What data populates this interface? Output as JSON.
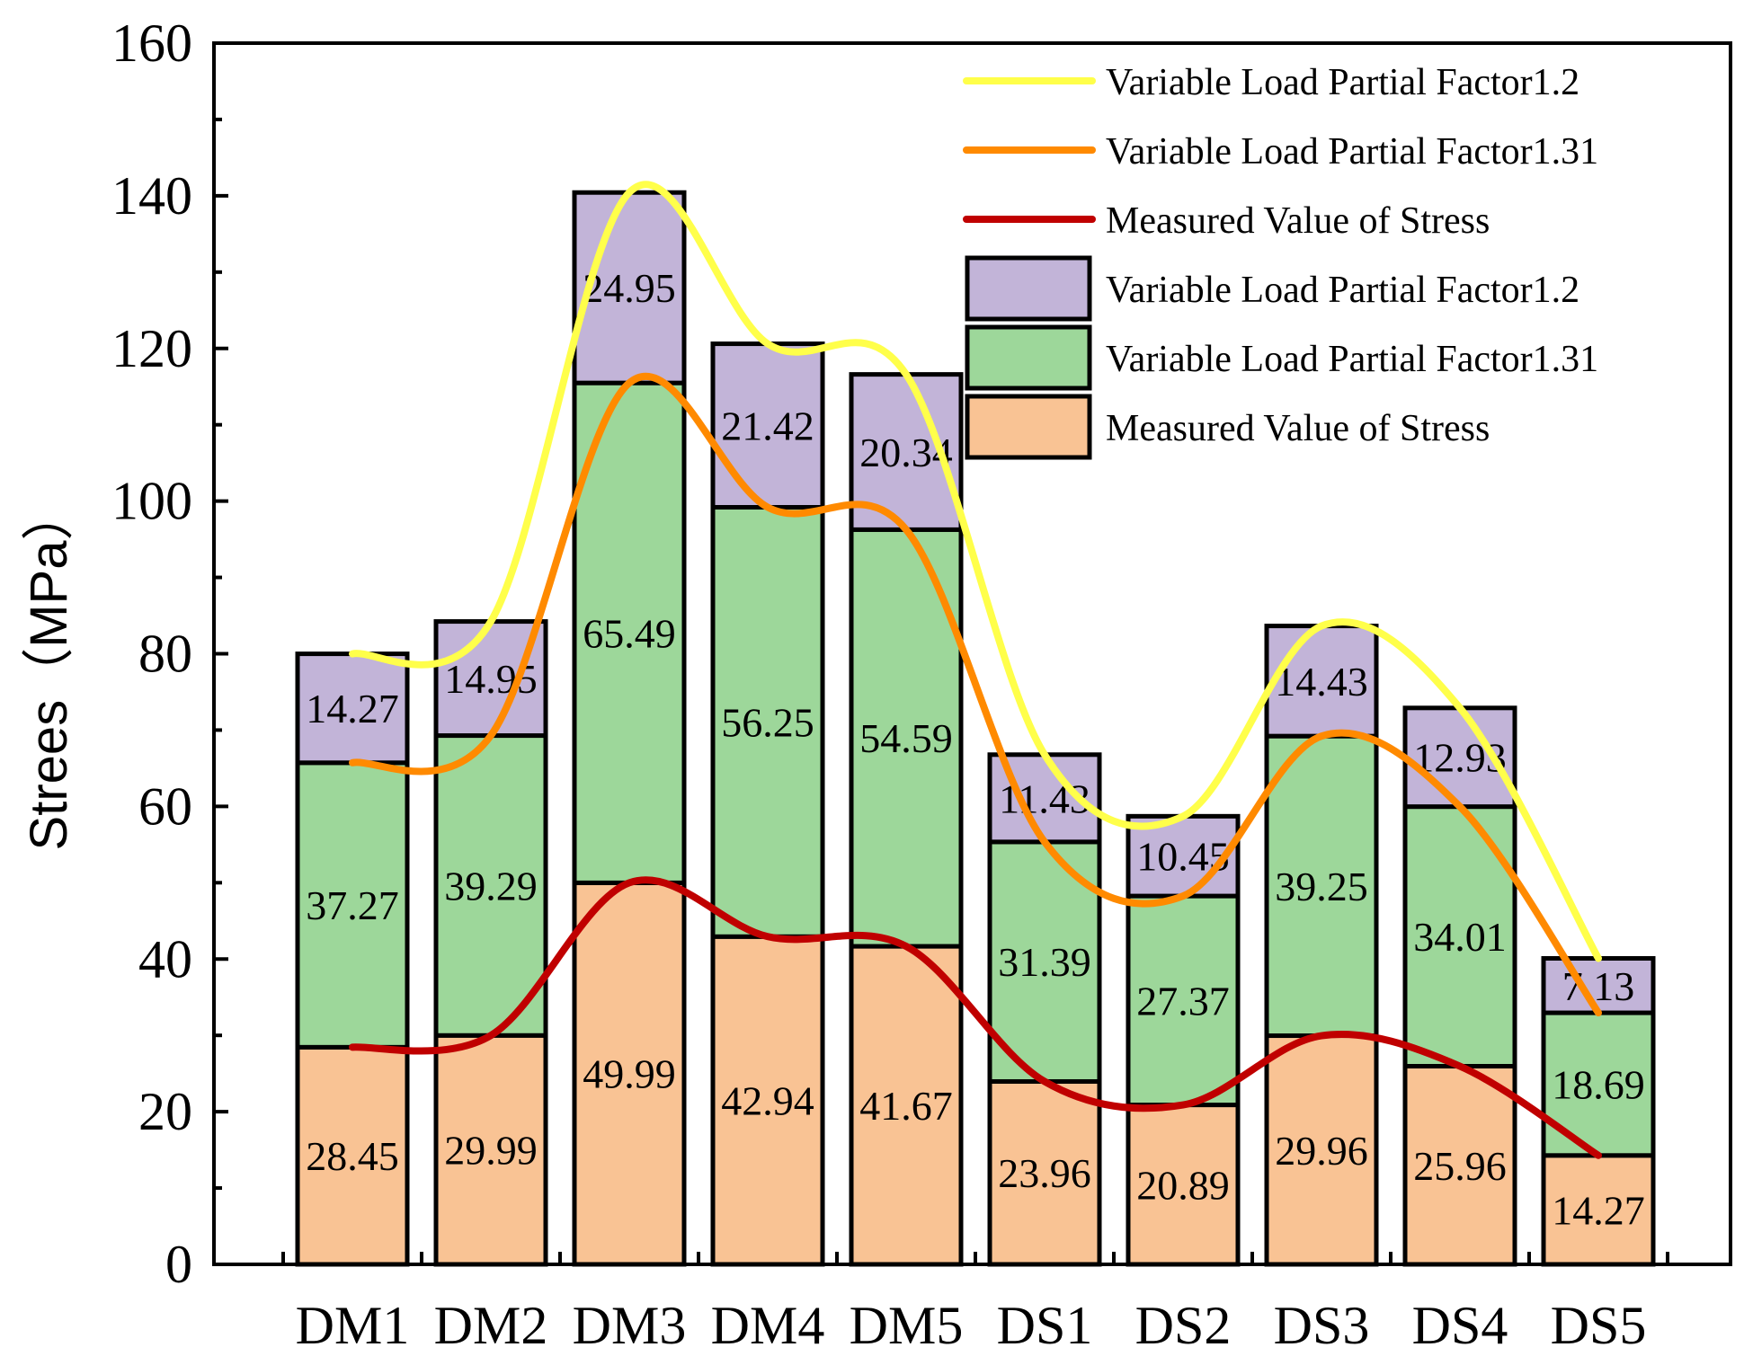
{
  "chart_data": {
    "type": "bar",
    "stacked": true,
    "title": "",
    "xlabel": "",
    "ylabel": "Strees（MPa）",
    "ylim": [
      0,
      160
    ],
    "yticks": [
      0,
      20,
      40,
      60,
      80,
      100,
      120,
      140,
      160
    ],
    "categories": [
      "DM1",
      "DM2",
      "DM3",
      "DM4",
      "DM5",
      "DS1",
      "DS2",
      "DS3",
      "DS4",
      "DS5"
    ],
    "series": [
      {
        "name": "Measured Value of Stress",
        "kind": "bar",
        "color": "#f9c394",
        "values": [
          28.45,
          29.99,
          49.99,
          42.94,
          41.67,
          23.96,
          20.89,
          29.96,
          25.96,
          14.27
        ]
      },
      {
        "name": "Variable Load Partial Factor1.31",
        "kind": "bar",
        "color": "#9dd79a",
        "values": [
          37.27,
          39.29,
          65.49,
          56.25,
          54.59,
          31.39,
          27.37,
          39.25,
          34.01,
          18.69
        ]
      },
      {
        "name": "Variable Load Partial Factor1.2",
        "kind": "bar",
        "color": "#c2b4d8",
        "values": [
          14.27,
          14.95,
          24.95,
          21.42,
          20.34,
          11.43,
          10.45,
          14.43,
          12.93,
          7.13
        ]
      }
    ],
    "lines": [
      {
        "name": "Variable Load Partial Factor1.2",
        "color": "#ffff4a",
        "values": [
          79.99,
          84.23,
          140.43,
          120.61,
          116.6,
          66.78,
          58.71,
          83.64,
          72.9,
          40.09
        ]
      },
      {
        "name": "Variable Load Partial Factor1.31",
        "color": "#ff8a00",
        "values": [
          65.72,
          69.28,
          115.48,
          99.19,
          96.26,
          55.35,
          48.26,
          69.21,
          59.97,
          32.96
        ]
      },
      {
        "name": "Measured Value of Stress",
        "color": "#c00000",
        "values": [
          28.45,
          29.99,
          49.99,
          42.94,
          41.67,
          23.96,
          20.89,
          29.96,
          25.96,
          14.27
        ]
      }
    ],
    "legend": {
      "position": "top-right",
      "entries": [
        {
          "label": "Variable Load Partial Factor1.2",
          "kind": "line",
          "color": "#ffff4a"
        },
        {
          "label": "Variable Load Partial Factor1.31",
          "kind": "line",
          "color": "#ff8a00"
        },
        {
          "label": "Measured Value of Stress",
          "kind": "line",
          "color": "#c00000"
        },
        {
          "label": "Variable Load Partial Factor1.2",
          "kind": "box",
          "color": "#c2b4d8"
        },
        {
          "label": "Variable Load Partial Factor1.31",
          "kind": "box",
          "color": "#9dd79a"
        },
        {
          "label": "Measured Value of Stress",
          "kind": "box",
          "color": "#f9c394"
        }
      ]
    }
  }
}
